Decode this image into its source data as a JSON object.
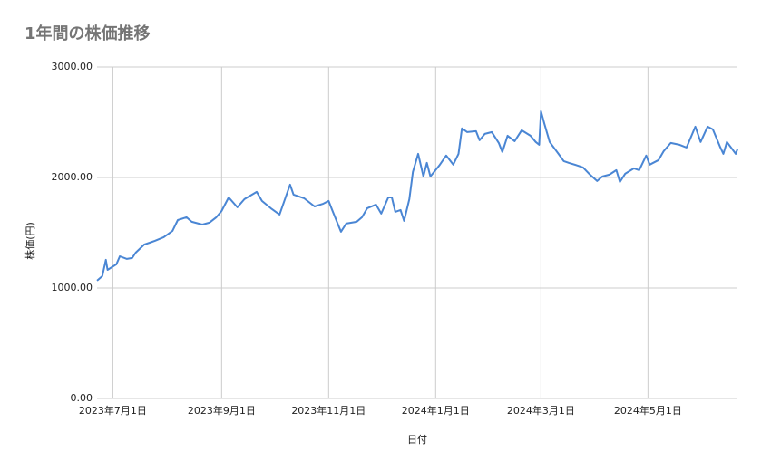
{
  "chart_data": {
    "type": "line",
    "title": "1年間の株価推移",
    "x_label": "日付",
    "y_label": "株価(円)",
    "color": "#4a86d4",
    "grid": true,
    "xlim": [
      "2023-06-22",
      "2024-06-21"
    ],
    "xticks": [
      {
        "value": "2023-07-01",
        "label": "2023年7月1日"
      },
      {
        "value": "2023-09-01",
        "label": "2023年9月1日"
      },
      {
        "value": "2023-11-01",
        "label": "2023年11月1日"
      },
      {
        "value": "2024-01-01",
        "label": "2024年1月1日"
      },
      {
        "value": "2024-03-01",
        "label": "2024年3月1日"
      },
      {
        "value": "2024-05-01",
        "label": "2024年5月1日"
      }
    ],
    "ylim": [
      0,
      3000
    ],
    "yticks": [
      {
        "value": 0,
        "label": "0.00"
      },
      {
        "value": 1000,
        "label": "1000.00"
      },
      {
        "value": 2000,
        "label": "2000.00"
      },
      {
        "value": 3000,
        "label": "3000.00"
      }
    ],
    "x": [
      "2023-06-22",
      "2023-06-25",
      "2023-06-27",
      "2023-06-28",
      "2023-07-03",
      "2023-07-05",
      "2023-07-09",
      "2023-07-12",
      "2023-07-14",
      "2023-07-19",
      "2023-07-22",
      "2023-07-25",
      "2023-07-30",
      "2023-08-04",
      "2023-08-07",
      "2023-08-12",
      "2023-08-15",
      "2023-08-21",
      "2023-08-25",
      "2023-08-29",
      "2023-09-01",
      "2023-09-05",
      "2023-09-10",
      "2023-09-14",
      "2023-09-21",
      "2023-09-24",
      "2023-09-29",
      "2023-10-04",
      "2023-10-08",
      "2023-10-10",
      "2023-10-12",
      "2023-10-18",
      "2023-10-24",
      "2023-10-29",
      "2023-11-01",
      "2023-11-03",
      "2023-11-08",
      "2023-11-11",
      "2023-11-17",
      "2023-11-20",
      "2023-11-23",
      "2023-11-28",
      "2023-12-01",
      "2023-12-05",
      "2023-12-07",
      "2023-12-09",
      "2023-12-12",
      "2023-12-14",
      "2023-12-17",
      "2023-12-19",
      "2023-12-22",
      "2023-12-25",
      "2023-12-27",
      "2023-12-29",
      "2024-01-03",
      "2024-01-07",
      "2024-01-11",
      "2024-01-14",
      "2024-01-16",
      "2024-01-19",
      "2024-01-24",
      "2024-01-26",
      "2024-01-29",
      "2024-02-02",
      "2024-02-06",
      "2024-02-08",
      "2024-02-11",
      "2024-02-15",
      "2024-02-19",
      "2024-02-24",
      "2024-02-27",
      "2024-02-29",
      "2024-03-01",
      "2024-03-03",
      "2024-03-06",
      "2024-03-11",
      "2024-03-14",
      "2024-03-17",
      "2024-03-22",
      "2024-03-25",
      "2024-03-29",
      "2024-04-02",
      "2024-04-05",
      "2024-04-09",
      "2024-04-13",
      "2024-04-15",
      "2024-04-18",
      "2024-04-23",
      "2024-04-26",
      "2024-04-30",
      "2024-05-02",
      "2024-05-07",
      "2024-05-10",
      "2024-05-14",
      "2024-05-19",
      "2024-05-23",
      "2024-05-28",
      "2024-05-31",
      "2024-06-04",
      "2024-06-07",
      "2024-06-11",
      "2024-06-13",
      "2024-06-15",
      "2024-06-20",
      "2024-06-21"
    ],
    "values": [
      1066,
      1107,
      1255,
      1164,
      1214,
      1287,
      1263,
      1271,
      1320,
      1394,
      1410,
      1427,
      1460,
      1517,
      1615,
      1640,
      1599,
      1574,
      1591,
      1640,
      1697,
      1820,
      1730,
      1804,
      1870,
      1788,
      1722,
      1665,
      1845,
      1935,
      1845,
      1812,
      1738,
      1763,
      1788,
      1706,
      1509,
      1583,
      1599,
      1640,
      1722,
      1755,
      1673,
      1820,
      1820,
      1689,
      1706,
      1607,
      1804,
      2050,
      2214,
      2009,
      2132,
      2009,
      2107,
      2198,
      2116,
      2214,
      2444,
      2411,
      2419,
      2337,
      2394,
      2411,
      2312,
      2230,
      2378,
      2329,
      2427,
      2378,
      2321,
      2296,
      2599,
      2485,
      2321,
      2214,
      2148,
      2132,
      2107,
      2091,
      2025,
      1968,
      2009,
      2025,
      2066,
      1960,
      2034,
      2083,
      2066,
      2198,
      2116,
      2157,
      2239,
      2312,
      2296,
      2271,
      2460,
      2321,
      2460,
      2435,
      2280,
      2214,
      2321,
      2214,
      2255
    ]
  }
}
